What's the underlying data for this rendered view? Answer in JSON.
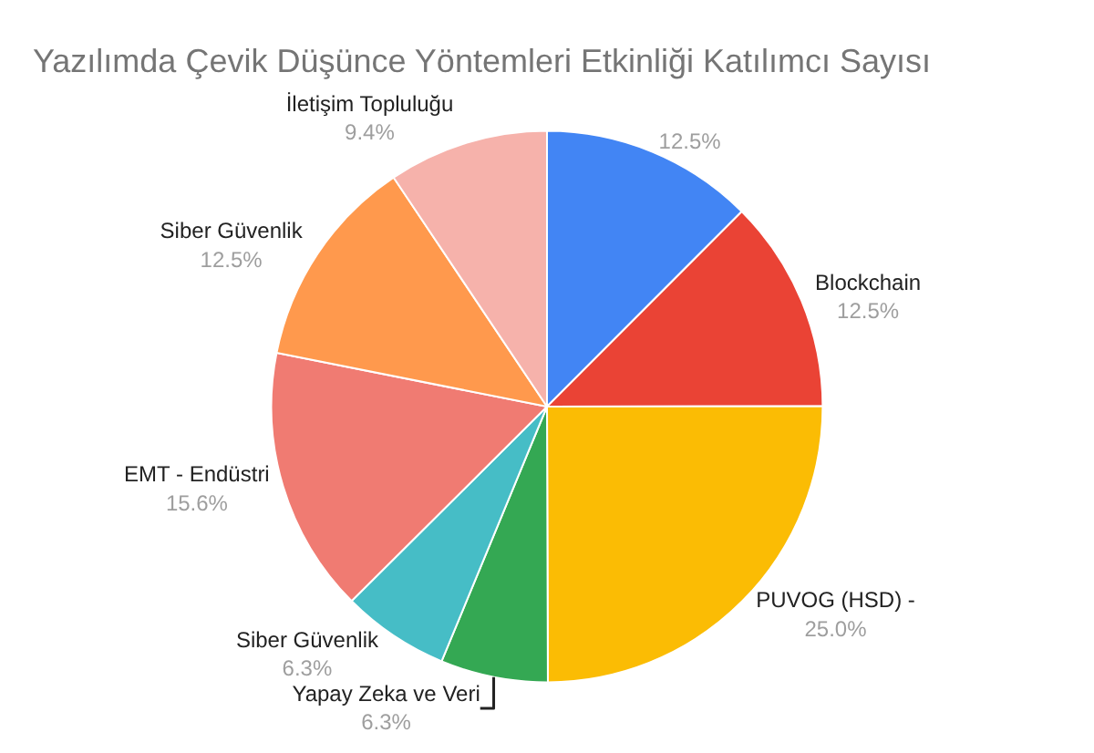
{
  "chart_data": {
    "type": "pie",
    "title": "Yazılımda Çevik Düşünce Yöntemleri Etkinliği Katılımcı Sayısı",
    "categories": [
      null,
      "Blockchain",
      "PUVOG (HSD) -",
      "Yapay Zeka ve Veri",
      "Siber Güvenlik",
      "EMT - Endüstri",
      "Siber Güvenlik",
      "İletişim Topluluğu"
    ],
    "values": [
      12.5,
      12.5,
      25.0,
      6.3,
      6.3,
      15.6,
      12.5,
      9.4
    ],
    "value_labels": [
      "12.5%",
      "12.5%",
      "25.0%",
      "6.3%",
      "6.3%",
      "15.6%",
      "12.5%",
      "9.4%"
    ],
    "colors": [
      "#4285f4",
      "#ea4335",
      "#fbbc04",
      "#34a853",
      "#46bdc6",
      "#f07b72",
      "#ff994d",
      "#f6b2ab"
    ]
  }
}
